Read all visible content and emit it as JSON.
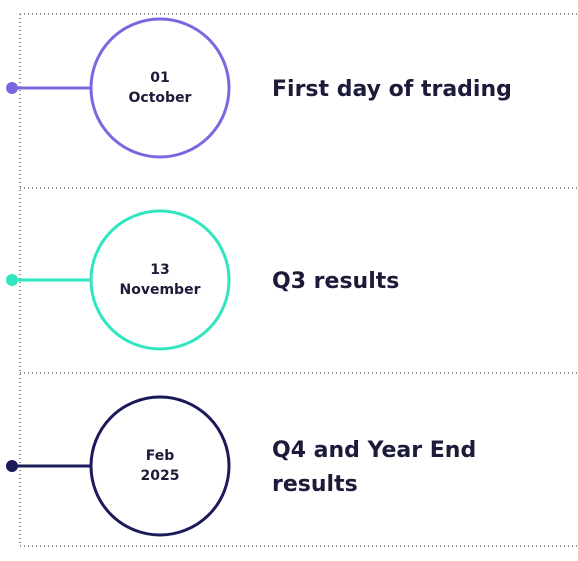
{
  "events": [
    {
      "date": [
        "01",
        "October"
      ],
      "title": [
        "First day of trading"
      ]
    },
    {
      "date": [
        "13",
        "November"
      ],
      "title": [
        "Q3 results"
      ]
    },
    {
      "date": [
        "Feb",
        "2025"
      ],
      "title": [
        "Q4 and Year End",
        "results"
      ]
    }
  ]
}
